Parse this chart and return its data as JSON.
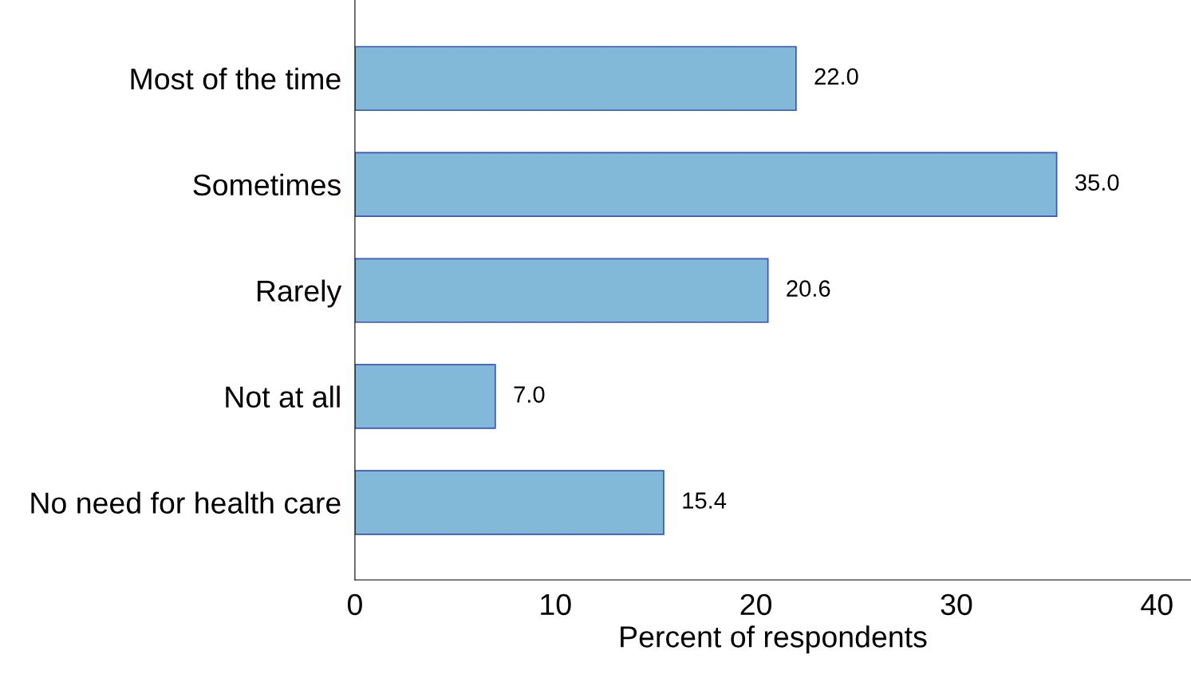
{
  "chart_data": {
    "type": "bar",
    "orientation": "horizontal",
    "xlabel": "Percent of respondents",
    "categories": [
      "Most of the time",
      "Sometimes",
      "Rarely",
      "Not at all",
      "No need for health care"
    ],
    "values": [
      22.0,
      35.0,
      20.6,
      7.0,
      15.4
    ],
    "value_labels": [
      "22.0",
      "35.0",
      "20.6",
      "7.0",
      "15.4"
    ],
    "color": "#82b8d8",
    "xlim": [
      0,
      41.7
    ],
    "xticks": [
      0,
      10,
      20,
      30,
      40
    ],
    "grid": false,
    "legend": false
  }
}
